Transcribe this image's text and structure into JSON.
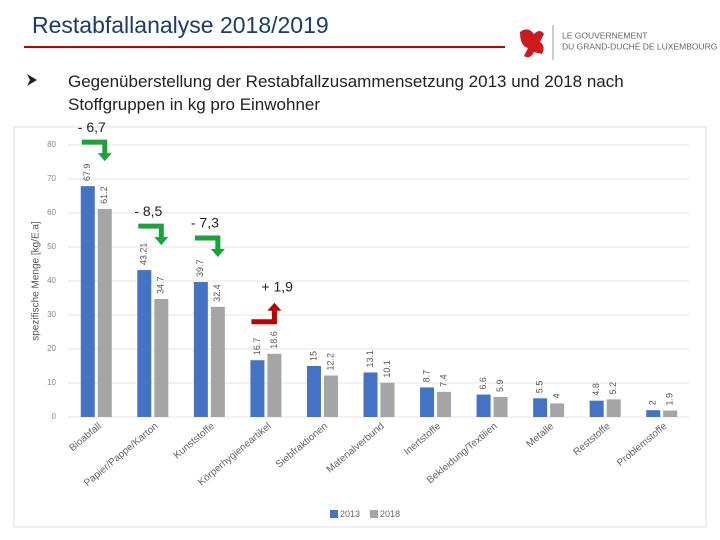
{
  "header": {
    "title": "Restabfallanalyse 2018/2019",
    "logo_line1": "LE GOUVERNEMENT",
    "logo_line2": "DU GRAND-DUCHÉ DE LUXEMBOURG"
  },
  "bullet": "Gegenüberstellung der Restabfallzusammensetzung 2013 und 2018 nach Stoffgruppen in kg pro Einwohner",
  "chart_data": {
    "type": "bar",
    "y_label": "spezifische Menge [kg/E.a]",
    "categories": [
      "Bioabfall",
      "Papier/Pappe/Karton",
      "Kunststoffe",
      "Körperhygieneartikel",
      "Siebfraktionen",
      "Materialverbund",
      "Inertstoffe",
      "Bekleidung/Textilien",
      "Metalle",
      "Reststoffe",
      "Problemstoffe"
    ],
    "series": [
      {
        "name": "2013",
        "color": "#4472c4",
        "values": [
          67.9,
          43.21,
          39.7,
          16.7,
          15,
          13.1,
          8.7,
          6.6,
          5.5,
          4.8,
          2
        ]
      },
      {
        "name": "2018",
        "color": "#a5a5a5",
        "values": [
          61.2,
          34.7,
          32.4,
          18.6,
          12.2,
          10.1,
          7.4,
          5.9,
          4,
          5.2,
          1.9
        ]
      }
    ],
    "annotations": [
      "- 6,7",
      "- 8,5",
      "- 7,3",
      "+ 1,9"
    ],
    "ylim": [
      0,
      80
    ],
    "yticks": [
      0,
      10,
      20,
      30,
      40,
      50,
      60,
      70,
      80
    ],
    "grid": true,
    "legend": "bottom"
  }
}
